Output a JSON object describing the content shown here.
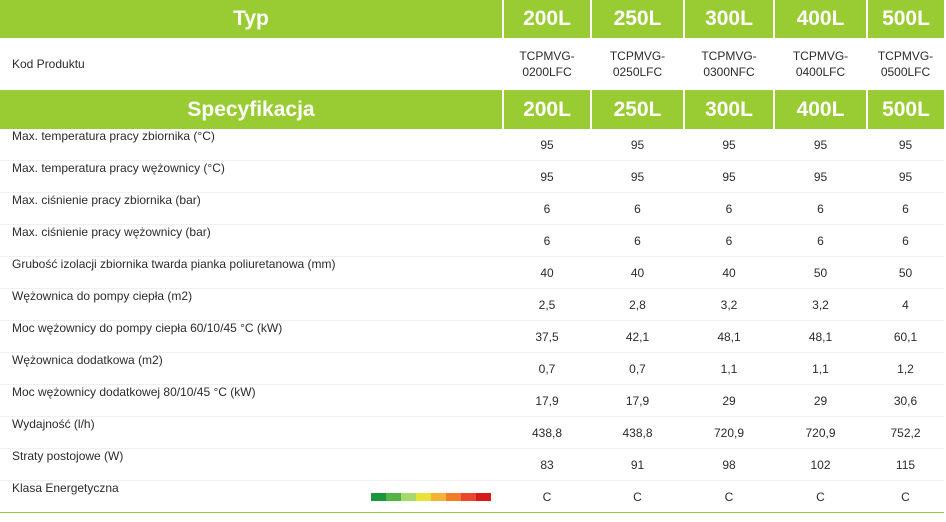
{
  "header": {
    "typ_label": "Typ",
    "sizes": [
      "200L",
      "250L",
      "300L",
      "400L",
      "500L"
    ]
  },
  "product_codes": {
    "label": "Kod Produktu",
    "codes": [
      [
        "TCPMVG-",
        "0200LFC"
      ],
      [
        "TCPMVG-",
        "0250LFC"
      ],
      [
        "TCPMVG-",
        "0300NFC"
      ],
      [
        "TCPMVG-",
        "0400LFC"
      ],
      [
        "TCPMVG-",
        "0500LFC"
      ]
    ]
  },
  "spec_header": {
    "label": "Specyfikacja",
    "sizes": [
      "200L",
      "250L",
      "300L",
      "400L",
      "500L"
    ]
  },
  "rows": [
    {
      "label": "Max. temperatura pracy zbiornika (°C)",
      "values": [
        "95",
        "95",
        "95",
        "95",
        "95"
      ]
    },
    {
      "label": "Max. temperatura pracy wężownicy (°C)",
      "values": [
        "95",
        "95",
        "95",
        "95",
        "95"
      ]
    },
    {
      "label": "Max. ciśnienie pracy zbiornika (bar)",
      "values": [
        "6",
        "6",
        "6",
        "6",
        "6"
      ]
    },
    {
      "label": "Max. ciśnienie pracy wężownicy (bar)",
      "values": [
        "6",
        "6",
        "6",
        "6",
        "6"
      ]
    },
    {
      "label": "Grubość izolacji zbiornika twarda pianka poliuretanowa  (mm)",
      "values": [
        "40",
        "40",
        "40",
        "50",
        "50"
      ]
    },
    {
      "label": "Wężownica do pompy ciepła (m2)",
      "values": [
        "2,5",
        "2,8",
        "3,2",
        "3,2",
        "4"
      ]
    },
    {
      "label": "Moc wężownicy do pompy ciepła  60/10/45 °C (kW)",
      "values": [
        "37,5",
        "42,1",
        "48,1",
        "48,1",
        "60,1"
      ]
    },
    {
      "label": "Wężownica dodatkowa (m2)",
      "values": [
        "0,7",
        "0,7",
        "1,1",
        "1,1",
        "1,2"
      ]
    },
    {
      "label": "Moc wężownicy dodatkowej 80/10/45 °C (kW)",
      "values": [
        "17,9",
        "17,9",
        "29",
        "29",
        "30,6"
      ]
    },
    {
      "label": "Wydajność (l/h)",
      "values": [
        "438,8",
        "438,8",
        "720,9",
        "720,9",
        "752,2"
      ]
    },
    {
      "label": "Straty postojowe (W)",
      "values": [
        "83",
        "91",
        "98",
        "102",
        "115"
      ]
    },
    {
      "label": "Klasa Energetyczna",
      "values": [
        "C",
        "C",
        "C",
        "C",
        "C"
      ]
    }
  ],
  "energy_scale_colors": [
    "#1a9641",
    "#52b447",
    "#a6d96a",
    "#e8e337",
    "#f5b335",
    "#f07d2b",
    "#e8462d",
    "#d7191c"
  ],
  "accent_color": "#99cc33"
}
